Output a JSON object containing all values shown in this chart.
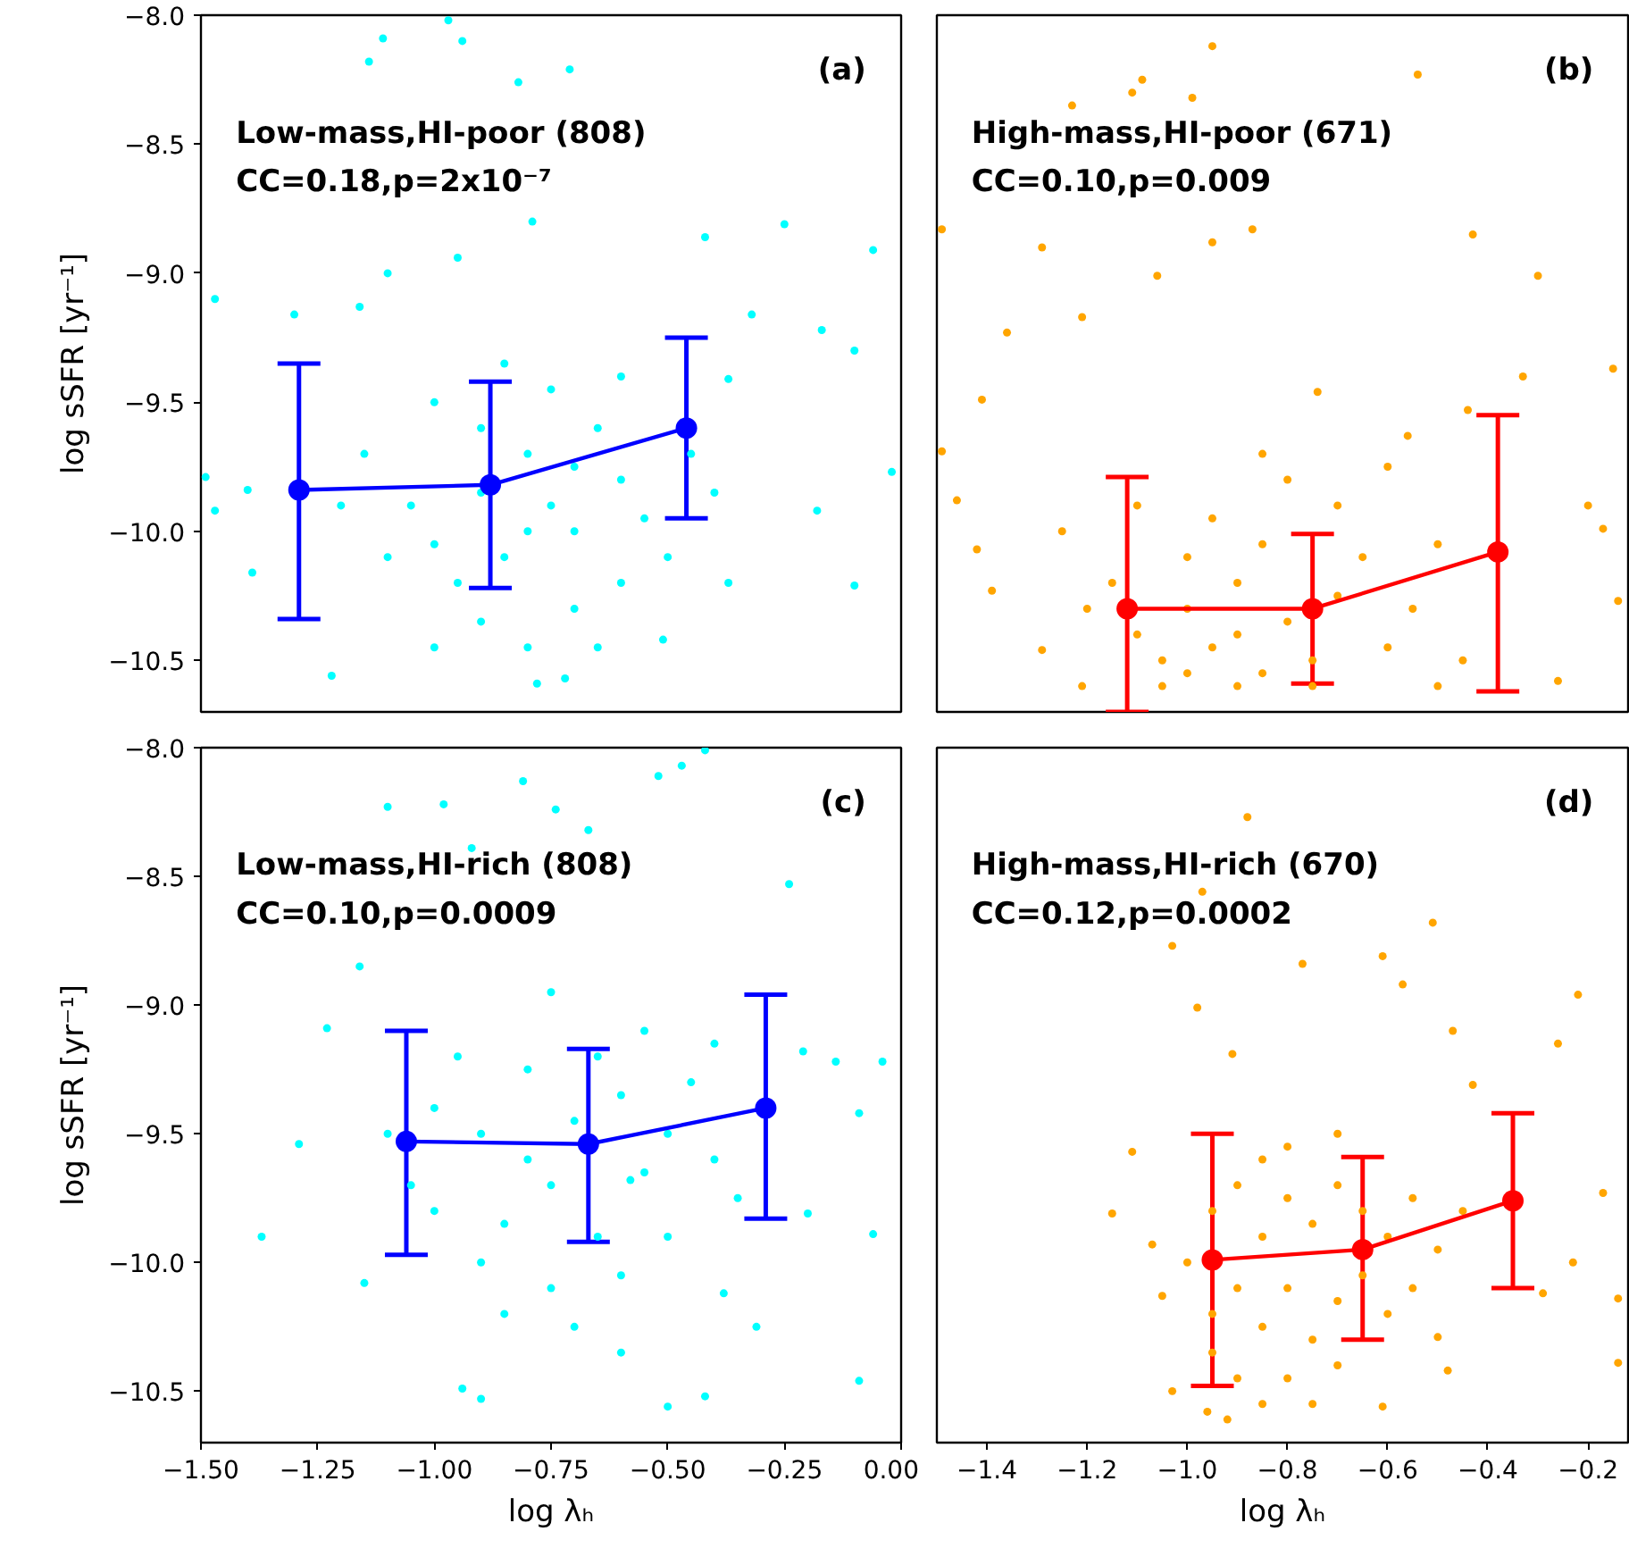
{
  "chart_data": [
    {
      "type": "scatter",
      "xlim": [
        -1.5,
        0.0
      ],
      "ylim": [
        -10.7,
        -8.0
      ],
      "tick_labels": "y",
      "ylabel": "log sSFR [yr⁻¹]",
      "yticks": [
        {
          "value": -10.5,
          "label": "−10.5"
        },
        {
          "value": -10.0,
          "label": "−10.0"
        },
        {
          "value": -9.5,
          "label": "−9.5"
        },
        {
          "value": -9.0,
          "label": "−9.0"
        },
        {
          "value": -8.5,
          "label": "−8.5"
        },
        {
          "value": -8.0,
          "label": "−8.0"
        }
      ],
      "annotations": [
        "(a)",
        "Low-mass,HI-poor (808)",
        "CC=0.18,p=2x10⁻⁷"
      ],
      "series": [
        {
          "marker": "circle",
          "color": "#00ffff",
          "x": [
            -0.97,
            -1.11,
            -0.94,
            -1.14,
            -0.71,
            -0.82,
            -0.25,
            -0.06,
            -0.42,
            -1.47,
            -0.79,
            -1.1,
            -0.95,
            -0.17,
            -0.1,
            -0.02,
            -1.49,
            -1.47,
            -0.1,
            -0.51,
            -1.22,
            -0.78,
            -0.72,
            -1.39,
            -0.37,
            -0.18,
            -0.32,
            -1.3,
            -1.16,
            -0.37,
            -1.4,
            -1.0,
            -0.9,
            -0.8,
            -0.75,
            -0.7,
            -0.85,
            -0.95,
            -0.6,
            -0.65,
            -0.55,
            -0.5,
            -1.05,
            -1.1,
            -1.15,
            -0.9,
            -0.8,
            -0.7,
            -0.6,
            -0.75,
            -0.85,
            -0.6,
            -0.45,
            -0.4,
            -1.2,
            -1.0,
            -0.65,
            -0.8,
            -0.7,
            -0.9,
            -1.0
          ],
          "values": [
            -8.02,
            -8.09,
            -8.1,
            -8.18,
            -8.21,
            -8.26,
            -8.81,
            -8.91,
            -8.86,
            -9.1,
            -8.8,
            -9.0,
            -8.94,
            -9.22,
            -9.3,
            -9.77,
            -9.79,
            -9.92,
            -10.21,
            -10.42,
            -10.56,
            -10.59,
            -10.57,
            -10.16,
            -10.2,
            -9.92,
            -9.16,
            -9.16,
            -9.13,
            -9.41,
            -9.84,
            -9.5,
            -9.6,
            -9.7,
            -9.9,
            -10.0,
            -10.1,
            -10.2,
            -9.8,
            -9.6,
            -9.95,
            -10.1,
            -9.9,
            -10.1,
            -9.7,
            -10.35,
            -10.45,
            -10.3,
            -10.2,
            -9.45,
            -9.35,
            -9.4,
            -9.7,
            -9.85,
            -9.9,
            -10.45,
            -10.45,
            -10.0,
            -9.75,
            -9.85,
            -10.05
          ]
        },
        {
          "type": "line",
          "marker": "circle",
          "line_style": "solid",
          "color": "#0000ff",
          "x": [
            -1.29,
            -0.88,
            -0.46
          ],
          "values": [
            -9.84,
            -9.82,
            -9.6
          ],
          "errors": [
            [
              -10.34,
              -9.35
            ],
            [
              -10.22,
              -9.42
            ],
            [
              -9.95,
              -9.25
            ]
          ]
        }
      ]
    },
    {
      "type": "scatter",
      "xlim": [
        -1.5,
        -0.12
      ],
      "ylim": [
        -10.7,
        -8.0
      ],
      "tick_labels": false,
      "annotations": [
        "(b)",
        "High-mass,HI-poor (671)",
        "CC=0.10,p=0.009"
      ],
      "series": [
        {
          "marker": "circle",
          "color": "#ffa500",
          "x": [
            -0.95,
            -0.54,
            -1.09,
            -1.11,
            -0.99,
            -1.23,
            -1.49,
            -0.43,
            -0.3,
            -1.29,
            -1.06,
            -1.21,
            -1.36,
            -1.41,
            -0.15,
            -0.33,
            -0.44,
            -0.74,
            -0.87,
            -0.95,
            -1.49,
            -1.46,
            -1.42,
            -1.39,
            -0.2,
            -0.17,
            -0.14,
            -0.26,
            -0.5,
            -1.21,
            -1.29,
            -0.56,
            -1.1,
            -1.05,
            -1.0,
            -0.95,
            -0.9,
            -0.85,
            -0.8,
            -0.75,
            -1.0,
            -0.9,
            -1.15,
            -0.95,
            -0.85,
            -0.7,
            -0.65,
            -0.6,
            -1.2,
            -1.1,
            -0.8,
            -0.7,
            -0.55,
            -0.5,
            -0.45,
            -1.05,
            -0.9,
            -1.0,
            -0.85,
            -1.25,
            -0.6,
            -0.75
          ],
          "values": [
            -8.12,
            -8.23,
            -8.25,
            -8.3,
            -8.32,
            -8.35,
            -8.83,
            -8.85,
            -9.01,
            -8.9,
            -9.01,
            -9.17,
            -9.23,
            -9.49,
            -9.37,
            -9.4,
            -9.53,
            -9.46,
            -8.83,
            -8.88,
            -9.69,
            -9.88,
            -10.07,
            -10.23,
            -9.9,
            -9.99,
            -10.27,
            -10.58,
            -10.6,
            -10.6,
            -10.46,
            -9.63,
            -10.4,
            -10.5,
            -10.3,
            -10.45,
            -10.2,
            -10.55,
            -10.35,
            -10.5,
            -10.1,
            -10.6,
            -10.2,
            -9.95,
            -10.05,
            -10.25,
            -10.1,
            -10.45,
            -10.3,
            -9.9,
            -9.8,
            -9.9,
            -10.3,
            -10.05,
            -10.5,
            -10.6,
            -10.4,
            -10.55,
            -9.7,
            -10.0,
            -9.75,
            -10.6
          ]
        },
        {
          "type": "line",
          "marker": "circle",
          "line_style": "solid",
          "color": "#ff0000",
          "x": [
            -1.12,
            -0.75,
            -0.38
          ],
          "values": [
            -10.3,
            -10.3,
            -10.08
          ],
          "errors": [
            [
              -10.7,
              -9.79
            ],
            [
              -10.59,
              -10.01
            ],
            [
              -10.62,
              -9.55
            ]
          ]
        }
      ]
    },
    {
      "type": "scatter",
      "xlim": [
        -1.5,
        0.0
      ],
      "ylim": [
        -10.7,
        -8.0
      ],
      "xlabel": "log λₕ",
      "ylabel": "log sSFR [yr⁻¹]",
      "xticks": [
        {
          "value": -1.5,
          "label": "−1.50"
        },
        {
          "value": -1.25,
          "label": "−1.25"
        },
        {
          "value": -1.0,
          "label": "−1.00"
        },
        {
          "value": -0.75,
          "label": "−0.75"
        },
        {
          "value": -0.5,
          "label": "−0.50"
        },
        {
          "value": -0.25,
          "label": "−0.25"
        },
        {
          "value": 0.0,
          "label": "0.00"
        }
      ],
      "yticks": [
        {
          "value": -10.5,
          "label": "−10.5"
        },
        {
          "value": -10.0,
          "label": "−10.0"
        },
        {
          "value": -9.5,
          "label": "−9.5"
        },
        {
          "value": -9.0,
          "label": "−9.0"
        },
        {
          "value": -8.5,
          "label": "−8.5"
        },
        {
          "value": -8.0,
          "label": "−8.0"
        }
      ],
      "annotations": [
        "(c)",
        "Low-mass,HI-rich (808)",
        "CC=0.10,p=0.0009"
      ],
      "series": [
        {
          "marker": "circle",
          "color": "#00ffff",
          "x": [
            -0.42,
            -0.47,
            -0.52,
            -0.81,
            -1.1,
            -0.98,
            -0.74,
            -0.67,
            -0.24,
            -0.92,
            -1.16,
            -1.23,
            -0.21,
            -0.04,
            -1.37,
            -1.29,
            -0.06,
            -0.09,
            -0.5,
            -0.9,
            -0.94,
            -1.15,
            -0.31,
            -0.42,
            -0.09,
            -0.2,
            -0.38,
            -0.14,
            -1.0,
            -0.9,
            -0.8,
            -0.75,
            -0.7,
            -0.58,
            -0.6,
            -0.55,
            -0.5,
            -0.45,
            -0.4,
            -0.85,
            -0.9,
            -0.75,
            -0.65,
            -0.6,
            -0.8,
            -0.95,
            -1.05,
            -1.1,
            -0.35,
            -0.5,
            -0.7,
            -0.85,
            -0.55,
            -0.65,
            -0.4,
            -0.75,
            -0.6,
            -1.0
          ],
          "values": [
            -8.01,
            -8.07,
            -8.11,
            -8.13,
            -8.23,
            -8.22,
            -8.24,
            -8.32,
            -8.53,
            -8.39,
            -8.85,
            -9.09,
            -9.18,
            -9.22,
            -9.9,
            -9.54,
            -9.89,
            -10.46,
            -10.56,
            -10.53,
            -10.49,
            -10.08,
            -10.25,
            -10.52,
            -9.42,
            -9.81,
            -10.12,
            -9.22,
            -9.4,
            -9.5,
            -9.6,
            -9.7,
            -9.45,
            -9.68,
            -9.35,
            -9.65,
            -9.5,
            -9.3,
            -9.6,
            -9.85,
            -10.0,
            -10.1,
            -9.9,
            -10.05,
            -9.25,
            -9.2,
            -9.7,
            -9.5,
            -9.75,
            -9.9,
            -10.25,
            -10.2,
            -9.1,
            -9.2,
            -9.15,
            -8.95,
            -10.35,
            -9.8
          ]
        },
        {
          "type": "line",
          "marker": "circle",
          "line_style": "solid",
          "color": "#0000ff",
          "x": [
            -1.06,
            -0.67,
            -0.29
          ],
          "values": [
            -9.53,
            -9.54,
            -9.4
          ],
          "errors": [
            [
              -9.97,
              -9.1
            ],
            [
              -9.92,
              -9.17
            ],
            [
              -9.83,
              -8.96
            ]
          ]
        }
      ]
    },
    {
      "type": "scatter",
      "xlim": [
        -1.5,
        -0.12
      ],
      "ylim": [
        -10.7,
        -8.0
      ],
      "tick_labels": "x",
      "xlabel": "log λₕ",
      "xticks": [
        {
          "value": -1.4,
          "label": "−1.4"
        },
        {
          "value": -1.2,
          "label": "−1.2"
        },
        {
          "value": -1.0,
          "label": "−1.0"
        },
        {
          "value": -0.8,
          "label": "−0.8"
        },
        {
          "value": -0.6,
          "label": "−0.6"
        },
        {
          "value": -0.4,
          "label": "−0.4"
        },
        {
          "value": -0.2,
          "label": "−0.2"
        }
      ],
      "annotations": [
        "(d)",
        "High-mass,HI-rich (670)",
        "CC=0.12,p=0.0002"
      ],
      "series": [
        {
          "marker": "circle",
          "color": "#ffa500",
          "x": [
            -0.88,
            -0.97,
            -1.03,
            -0.51,
            -0.61,
            -0.57,
            -0.77,
            -0.22,
            -0.26,
            -0.47,
            -0.98,
            -0.91,
            -1.15,
            -1.11,
            -1.07,
            -1.03,
            -0.96,
            -0.92,
            -0.17,
            -0.14,
            -0.14,
            -0.23,
            -0.29,
            -0.48,
            -0.61,
            -0.5,
            -1.05,
            -0.43,
            -0.95,
            -0.9,
            -0.85,
            -0.8,
            -0.75,
            -0.7,
            -0.65,
            -0.9,
            -0.85,
            -0.8,
            -0.75,
            -0.7,
            -0.65,
            -0.95,
            -0.9,
            -0.8,
            -0.75,
            -0.85,
            -0.7,
            -0.6,
            -0.55,
            -0.5,
            -0.6,
            -1.0,
            -0.95,
            -0.8,
            -0.7,
            -0.45,
            -0.55,
            -0.85
          ],
          "values": [
            -8.27,
            -8.56,
            -8.77,
            -8.68,
            -8.81,
            -8.92,
            -8.84,
            -8.96,
            -9.15,
            -9.1,
            -9.01,
            -9.19,
            -9.81,
            -9.57,
            -9.93,
            -10.5,
            -10.58,
            -10.61,
            -9.73,
            -10.14,
            -10.39,
            -10.0,
            -10.12,
            -10.42,
            -10.56,
            -10.29,
            -10.13,
            -9.31,
            -9.8,
            -9.7,
            -9.9,
            -9.75,
            -9.85,
            -9.7,
            -9.8,
            -10.1,
            -10.25,
            -10.1,
            -10.3,
            -10.15,
            -10.05,
            -10.35,
            -10.45,
            -10.45,
            -10.55,
            -10.55,
            -10.4,
            -9.9,
            -9.75,
            -9.95,
            -10.2,
            -10.0,
            -10.2,
            -9.55,
            -9.5,
            -9.8,
            -10.1,
            -9.6
          ]
        },
        {
          "type": "line",
          "marker": "circle",
          "line_style": "solid",
          "color": "#ff0000",
          "x": [
            -0.95,
            -0.65,
            -0.35
          ],
          "values": [
            -9.99,
            -9.95,
            -9.76
          ],
          "errors": [
            [
              -10.48,
              -9.5
            ],
            [
              -10.3,
              -9.59
            ],
            [
              -10.1,
              -9.42
            ]
          ]
        }
      ]
    }
  ]
}
